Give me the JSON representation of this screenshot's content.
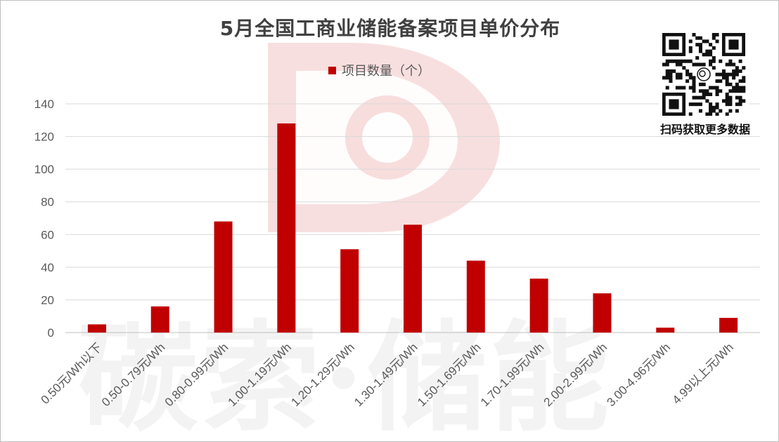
{
  "title": "5月全国工商业储能备案项目单价分布",
  "legend": {
    "label": "项目数量（个）"
  },
  "qr": {
    "caption": "扫码获取更多数据"
  },
  "watermark": {
    "text": "碳索·储能"
  },
  "colors": {
    "bar": "#c00000",
    "grid": "#d9d9d9",
    "axis_text": "#595959",
    "watermark": "#f6d4d4"
  },
  "chart_data": {
    "type": "bar",
    "title": "5月全国工商业储能备案项目单价分布",
    "xlabel": "",
    "ylabel": "",
    "categories": [
      "0.50元/Wh以下",
      "0.50-0.79元/Wh",
      "0.80-0.99元/Wh",
      "1.00-1.19元/Wh",
      "1.20-1.29元/Wh",
      "1.30-1.49元/Wh",
      "1.50-1.69元/Wh",
      "1.70-1.99元/Wh",
      "2.00-2.99元/Wh",
      "3.00-4.96元/Wh",
      "4.99以上元/Wh"
    ],
    "series": [
      {
        "name": "项目数量（个）",
        "values": [
          5,
          16,
          68,
          128,
          51,
          66,
          44,
          33,
          24,
          3,
          9
        ]
      }
    ],
    "ylim": [
      0,
      140
    ],
    "yticks": [
      0,
      20,
      40,
      60,
      80,
      100,
      120,
      140
    ],
    "grid": true,
    "legend_position": "top"
  }
}
